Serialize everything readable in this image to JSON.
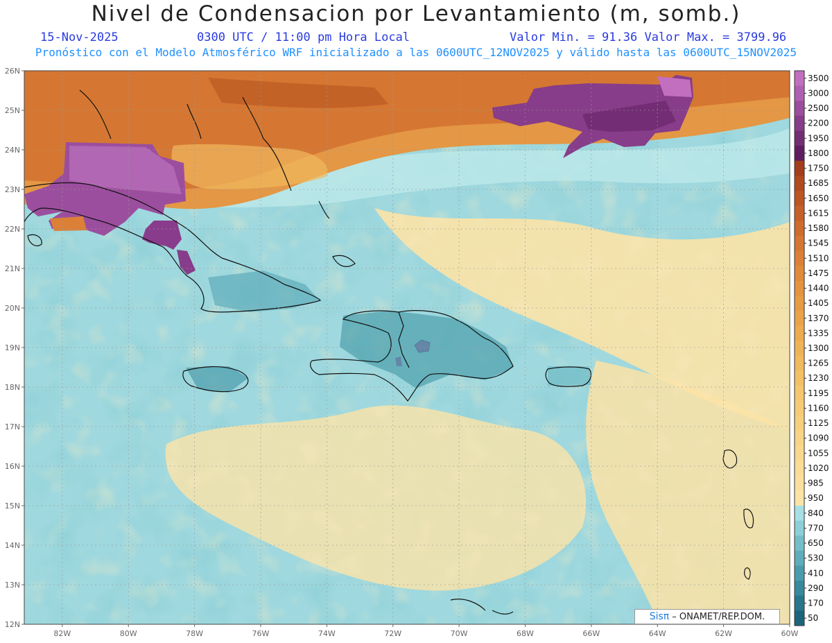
{
  "header": {
    "title": "Nivel de Condensacion por Levantamiento (m, somb.)",
    "date": "15-Nov-2025",
    "time": "0300 UTC / 11:00 pm Hora Local",
    "minmax": "Valor Min. = 91.36  Valor Max. = 3799.96",
    "subtitle": "Pronóstico con el Modelo Atmosférico WRF inicializado a las 0600UTC_12NOV2025 y válido hasta las  0600UTC_15NOV2025"
  },
  "map": {
    "lat_labels": [
      "26N",
      "25N",
      "24N",
      "23N",
      "22N",
      "21N",
      "20N",
      "19N",
      "18N",
      "17N",
      "16N",
      "15N",
      "14N",
      "13N",
      "12N"
    ],
    "lon_labels": [
      "82W",
      "80W",
      "78W",
      "76W",
      "74W",
      "72W",
      "70W",
      "68W",
      "66W",
      "64W",
      "62W",
      "60W"
    ]
  },
  "colorbar": {
    "levels": [
      "3500",
      "3000",
      "2500",
      "2200",
      "1950",
      "1800",
      "1750",
      "1685",
      "1650",
      "1615",
      "1580",
      "1545",
      "1510",
      "1475",
      "1440",
      "1405",
      "1370",
      "1335",
      "1300",
      "1265",
      "1230",
      "1195",
      "1160",
      "1125",
      "1090",
      "1055",
      "1020",
      "985",
      "950",
      "840",
      "770",
      "650",
      "530",
      "410",
      "290",
      "170",
      "50"
    ],
    "colors": [
      "#c36fc0",
      "#b15fb2",
      "#9c4e9e",
      "#873d89",
      "#732d74",
      "#5e1d5f",
      "#a33d1a",
      "#b24a1e",
      "#bd5523",
      "#c66028",
      "#ce6b2d",
      "#d57632",
      "#db8036",
      "#e08a3a",
      "#e4933f",
      "#e79b44",
      "#eaa34a",
      "#edab50",
      "#efb357",
      "#f1ba5e",
      "#f3c066",
      "#f5c66e",
      "#f6cb76",
      "#f7d07e",
      "#f8d486",
      "#f9d88e",
      "#fadc96",
      "#fbdf9e",
      "#fce3a6",
      "#a6e0e5",
      "#8ccfd6",
      "#74bec8",
      "#5eadba",
      "#4a9cac",
      "#38899c",
      "#27768c",
      "#1c647c"
    ]
  },
  "credit": {
    "sis": "Sisπ",
    "org": "– ONAMET/REP.DOM."
  }
}
